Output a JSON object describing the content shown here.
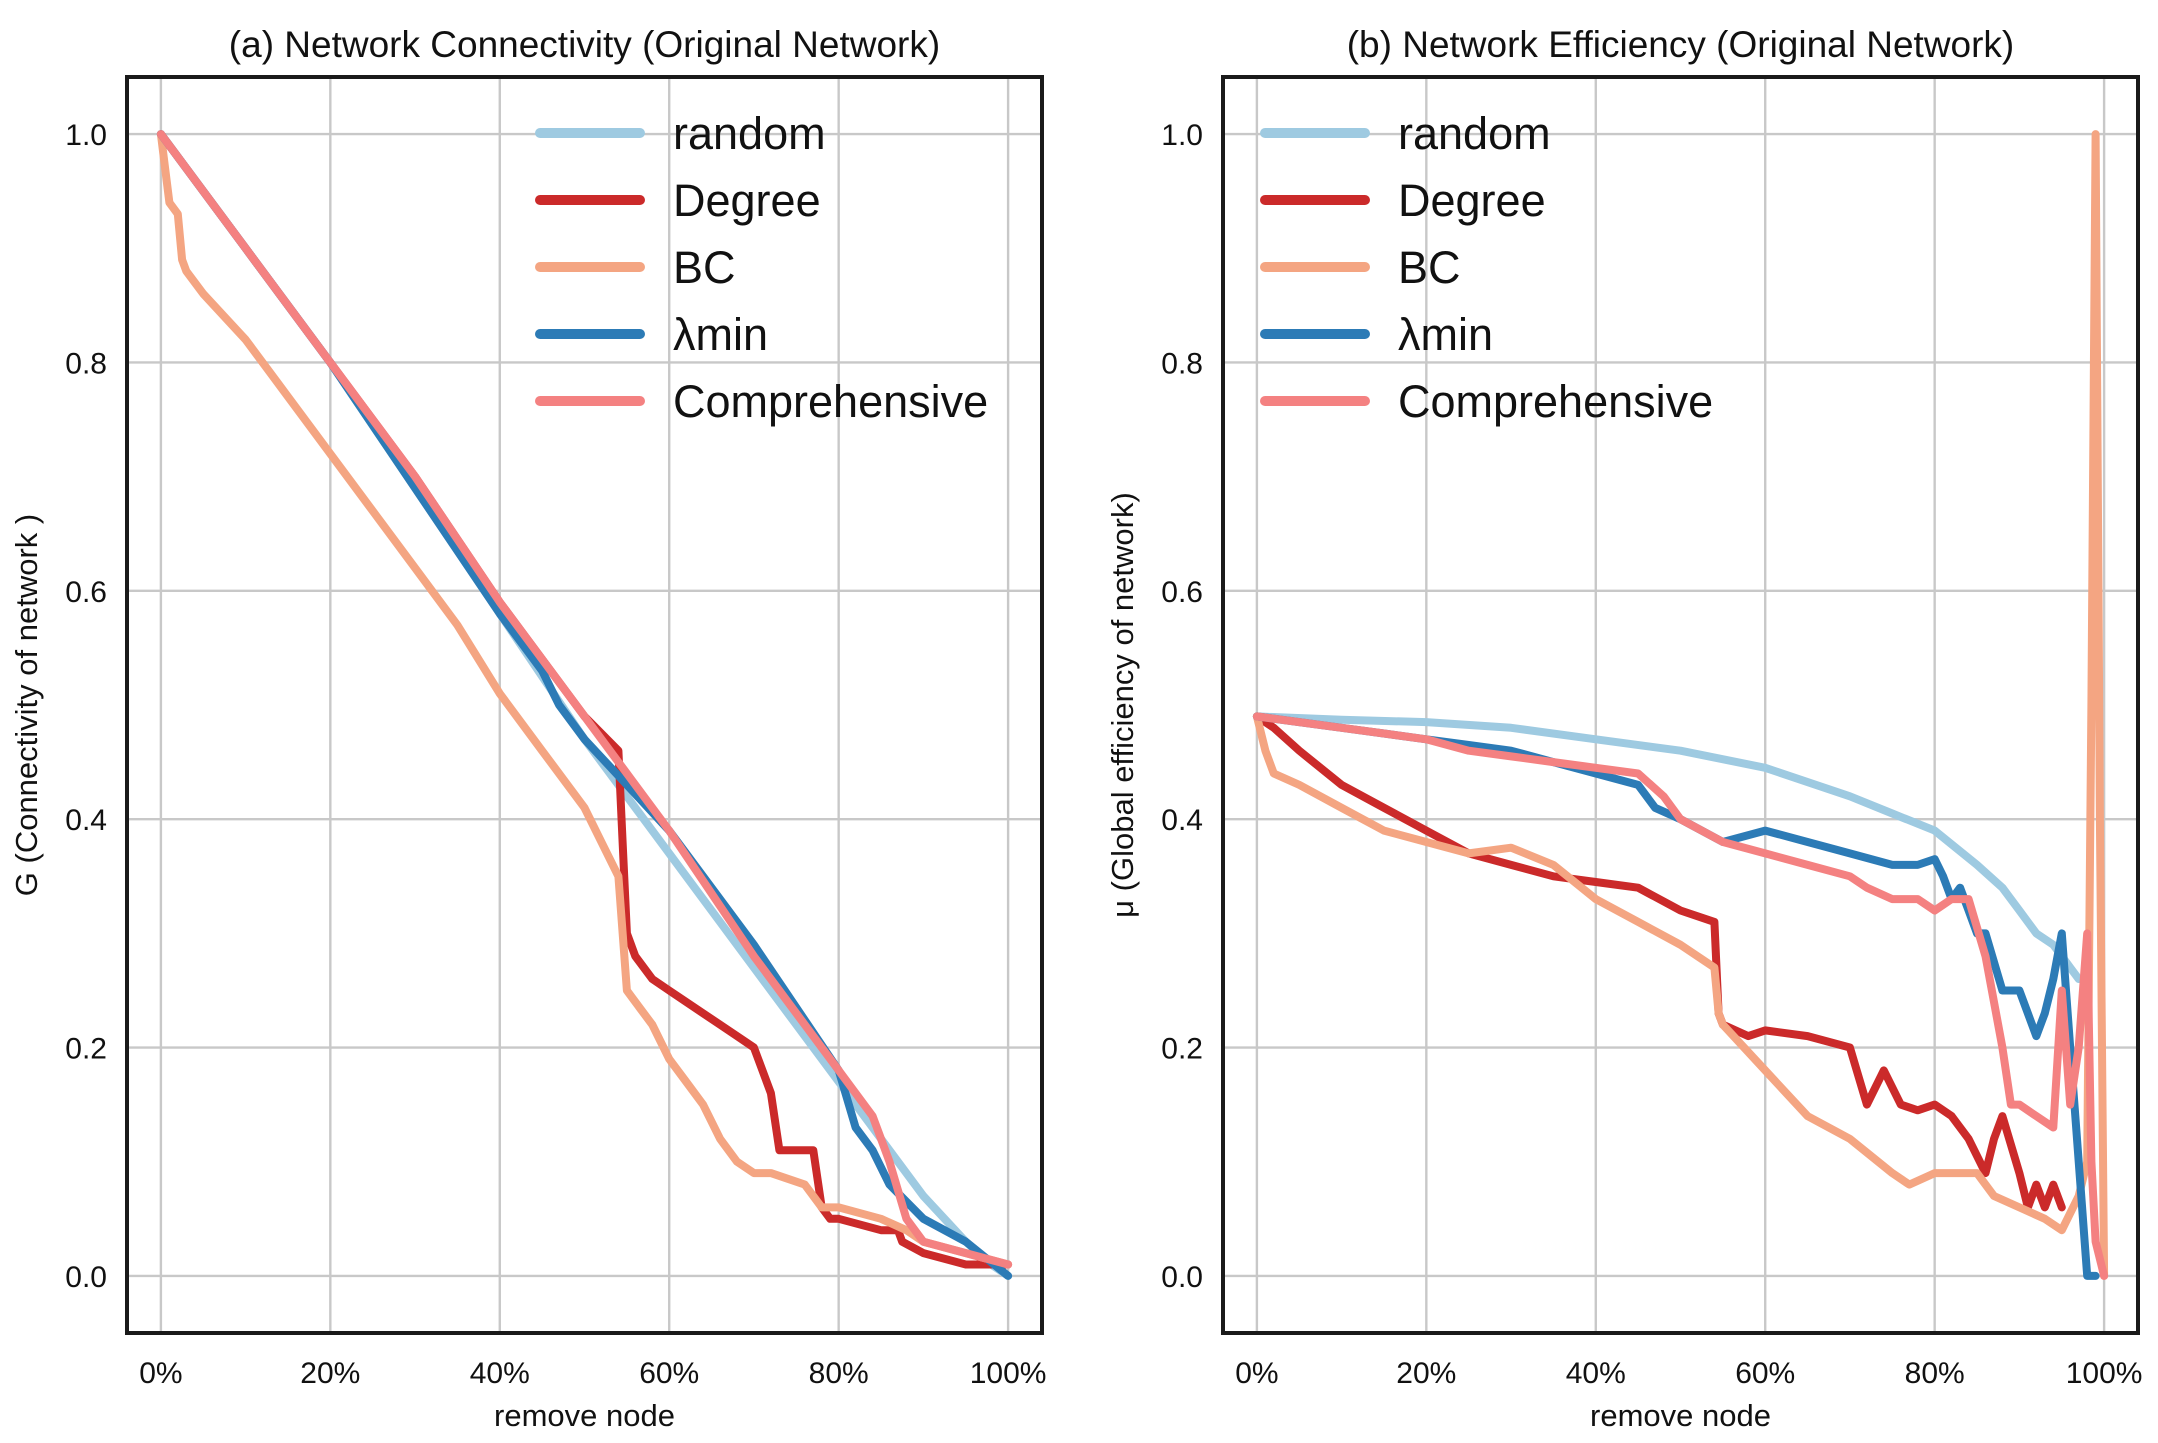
{
  "colors": {
    "random": "#9ecae1",
    "Degree": "#cb2a2a",
    "BC": "#f4a582",
    "lambda_min": "#2c7bb6",
    "Comprehensive": "#f48181"
  },
  "chart_data": [
    {
      "type": "line",
      "title": "(a) Network Connectivity (Original Network)",
      "xlabel": "remove node",
      "ylabel": "G (Connectivity of network )",
      "xlim": [
        -0.04,
        1.04
      ],
      "ylim": [
        -0.05,
        1.05
      ],
      "xticks": [
        0,
        0.2,
        0.4,
        0.6,
        0.8,
        1.0
      ],
      "xtick_labels": [
        "0%",
        "20%",
        "40%",
        "60%",
        "80%",
        "100%"
      ],
      "yticks": [
        0,
        0.2,
        0.4,
        0.6,
        0.8,
        1.0
      ],
      "ytick_labels": [
        "0.0",
        "0.2",
        "0.4",
        "0.6",
        "0.8",
        "1.0"
      ],
      "grid": true,
      "legend": "top-right",
      "series": [
        {
          "key": "random",
          "name": "random",
          "x": [
            0.0,
            0.1,
            0.2,
            0.3,
            0.4,
            0.5,
            0.6,
            0.7,
            0.8,
            0.9,
            0.95,
            0.98,
            1.0
          ],
          "y": [
            1.0,
            0.9,
            0.8,
            0.69,
            0.58,
            0.47,
            0.37,
            0.27,
            0.17,
            0.07,
            0.03,
            0.01,
            0.0
          ]
        },
        {
          "key": "Degree",
          "name": "Degree",
          "x": [
            0.0,
            0.1,
            0.2,
            0.3,
            0.4,
            0.5,
            0.54,
            0.545,
            0.55,
            0.56,
            0.58,
            0.6,
            0.62,
            0.64,
            0.66,
            0.68,
            0.7,
            0.72,
            0.73,
            0.77,
            0.78,
            0.79,
            0.8,
            0.85,
            0.87,
            0.875,
            0.9,
            0.95,
            1.0
          ],
          "y": [
            1.0,
            0.9,
            0.8,
            0.7,
            0.59,
            0.49,
            0.46,
            0.38,
            0.3,
            0.28,
            0.26,
            0.25,
            0.24,
            0.23,
            0.22,
            0.21,
            0.2,
            0.16,
            0.11,
            0.11,
            0.06,
            0.05,
            0.05,
            0.04,
            0.04,
            0.03,
            0.02,
            0.01,
            0.01
          ]
        },
        {
          "key": "BC",
          "name": "BC",
          "x": [
            0.0,
            0.005,
            0.01,
            0.02,
            0.025,
            0.03,
            0.05,
            0.1,
            0.15,
            0.2,
            0.25,
            0.3,
            0.35,
            0.4,
            0.45,
            0.5,
            0.52,
            0.54,
            0.55,
            0.56,
            0.58,
            0.6,
            0.62,
            0.64,
            0.66,
            0.68,
            0.7,
            0.72,
            0.76,
            0.78,
            0.8,
            0.85,
            0.88,
            0.9,
            0.95,
            1.0
          ],
          "y": [
            1.0,
            0.97,
            0.94,
            0.93,
            0.89,
            0.88,
            0.86,
            0.82,
            0.77,
            0.72,
            0.67,
            0.62,
            0.57,
            0.51,
            0.46,
            0.41,
            0.38,
            0.35,
            0.25,
            0.24,
            0.22,
            0.19,
            0.17,
            0.15,
            0.12,
            0.1,
            0.09,
            0.09,
            0.08,
            0.06,
            0.06,
            0.05,
            0.04,
            0.03,
            0.02,
            0.01
          ]
        },
        {
          "key": "lambda_min",
          "name": "λmin",
          "x": [
            0.0,
            0.1,
            0.2,
            0.3,
            0.4,
            0.45,
            0.47,
            0.5,
            0.55,
            0.6,
            0.7,
            0.8,
            0.82,
            0.84,
            0.86,
            0.9,
            0.95,
            1.0
          ],
          "y": [
            1.0,
            0.9,
            0.8,
            0.69,
            0.58,
            0.53,
            0.5,
            0.47,
            0.43,
            0.39,
            0.29,
            0.18,
            0.13,
            0.11,
            0.08,
            0.05,
            0.03,
            0.0
          ]
        },
        {
          "key": "Comprehensive",
          "name": "Comprehensive",
          "x": [
            0.0,
            0.1,
            0.2,
            0.3,
            0.4,
            0.5,
            0.55,
            0.6,
            0.7,
            0.8,
            0.84,
            0.86,
            0.88,
            0.9,
            0.95,
            1.0
          ],
          "y": [
            1.0,
            0.9,
            0.8,
            0.7,
            0.59,
            0.49,
            0.44,
            0.39,
            0.28,
            0.18,
            0.14,
            0.1,
            0.05,
            0.03,
            0.02,
            0.01
          ]
        }
      ]
    },
    {
      "type": "line",
      "title": "(b) Network Efficiency (Original Network)",
      "xlabel": "remove node",
      "ylabel": "μ (Global efficiency of network)",
      "xlim": [
        -0.04,
        1.04
      ],
      "ylim": [
        -0.05,
        1.05
      ],
      "xticks": [
        0,
        0.2,
        0.4,
        0.6,
        0.8,
        1.0
      ],
      "xtick_labels": [
        "0%",
        "20%",
        "40%",
        "60%",
        "80%",
        "100%"
      ],
      "yticks": [
        0,
        0.2,
        0.4,
        0.6,
        0.8,
        1.0
      ],
      "ytick_labels": [
        "0.0",
        "0.2",
        "0.4",
        "0.6",
        "0.8",
        "1.0"
      ],
      "grid": true,
      "legend": "top-left",
      "series": [
        {
          "key": "random",
          "name": "random",
          "x": [
            0.0,
            0.1,
            0.2,
            0.3,
            0.4,
            0.5,
            0.6,
            0.7,
            0.75,
            0.8,
            0.85,
            0.88,
            0.9,
            0.92,
            0.94,
            0.95,
            0.96,
            0.97
          ],
          "y": [
            0.49,
            0.487,
            0.485,
            0.48,
            0.47,
            0.46,
            0.445,
            0.42,
            0.405,
            0.39,
            0.36,
            0.34,
            0.32,
            0.3,
            0.29,
            0.28,
            0.27,
            0.26
          ]
        },
        {
          "key": "Degree",
          "name": "Degree",
          "x": [
            0.0,
            0.02,
            0.05,
            0.1,
            0.15,
            0.2,
            0.25,
            0.3,
            0.35,
            0.4,
            0.45,
            0.5,
            0.54,
            0.545,
            0.55,
            0.58,
            0.6,
            0.65,
            0.7,
            0.72,
            0.74,
            0.76,
            0.78,
            0.8,
            0.82,
            0.84,
            0.86,
            0.87,
            0.88,
            0.9,
            0.91,
            0.92,
            0.93,
            0.94,
            0.95
          ],
          "y": [
            0.49,
            0.48,
            0.46,
            0.43,
            0.41,
            0.39,
            0.37,
            0.36,
            0.35,
            0.345,
            0.34,
            0.32,
            0.31,
            0.23,
            0.22,
            0.21,
            0.215,
            0.21,
            0.2,
            0.15,
            0.18,
            0.15,
            0.145,
            0.15,
            0.14,
            0.12,
            0.09,
            0.12,
            0.14,
            0.09,
            0.06,
            0.08,
            0.06,
            0.08,
            0.06
          ]
        },
        {
          "key": "BC",
          "name": "BC",
          "x": [
            0.0,
            0.01,
            0.02,
            0.05,
            0.1,
            0.15,
            0.2,
            0.25,
            0.3,
            0.35,
            0.4,
            0.45,
            0.5,
            0.54,
            0.545,
            0.55,
            0.6,
            0.65,
            0.7,
            0.75,
            0.77,
            0.8,
            0.85,
            0.87,
            0.9,
            0.93,
            0.95,
            0.97,
            0.98,
            0.985,
            0.99,
            0.995,
            1.0
          ],
          "y": [
            0.49,
            0.46,
            0.44,
            0.43,
            0.41,
            0.39,
            0.38,
            0.37,
            0.375,
            0.36,
            0.33,
            0.31,
            0.29,
            0.27,
            0.23,
            0.22,
            0.18,
            0.14,
            0.12,
            0.09,
            0.08,
            0.09,
            0.09,
            0.07,
            0.06,
            0.05,
            0.04,
            0.07,
            0.1,
            0.5,
            1.0,
            0.4,
            0.0
          ]
        },
        {
          "key": "lambda_min",
          "name": "λmin",
          "x": [
            0.0,
            0.05,
            0.1,
            0.15,
            0.2,
            0.25,
            0.3,
            0.35,
            0.4,
            0.45,
            0.47,
            0.5,
            0.55,
            0.6,
            0.65,
            0.7,
            0.75,
            0.78,
            0.8,
            0.81,
            0.82,
            0.83,
            0.84,
            0.85,
            0.86,
            0.88,
            0.9,
            0.92,
            0.93,
            0.94,
            0.95,
            0.96,
            0.97,
            0.98,
            0.99
          ],
          "y": [
            0.49,
            0.485,
            0.48,
            0.475,
            0.47,
            0.465,
            0.46,
            0.45,
            0.44,
            0.43,
            0.41,
            0.4,
            0.38,
            0.39,
            0.38,
            0.37,
            0.36,
            0.36,
            0.365,
            0.35,
            0.33,
            0.34,
            0.32,
            0.3,
            0.3,
            0.25,
            0.25,
            0.21,
            0.23,
            0.26,
            0.3,
            0.2,
            0.1,
            0.0,
            0.0
          ]
        },
        {
          "key": "Comprehensive",
          "name": "Comprehensive",
          "x": [
            0.0,
            0.05,
            0.1,
            0.15,
            0.2,
            0.25,
            0.3,
            0.35,
            0.4,
            0.45,
            0.48,
            0.5,
            0.55,
            0.6,
            0.65,
            0.7,
            0.72,
            0.75,
            0.78,
            0.8,
            0.82,
            0.84,
            0.86,
            0.88,
            0.89,
            0.9,
            0.92,
            0.94,
            0.95,
            0.96,
            0.97,
            0.98,
            0.985,
            0.99,
            1.0
          ],
          "y": [
            0.49,
            0.485,
            0.48,
            0.475,
            0.47,
            0.46,
            0.455,
            0.45,
            0.445,
            0.44,
            0.42,
            0.4,
            0.38,
            0.37,
            0.36,
            0.35,
            0.34,
            0.33,
            0.33,
            0.32,
            0.33,
            0.33,
            0.28,
            0.2,
            0.15,
            0.15,
            0.14,
            0.13,
            0.25,
            0.15,
            0.2,
            0.3,
            0.1,
            0.03,
            0.0
          ]
        }
      ]
    }
  ]
}
